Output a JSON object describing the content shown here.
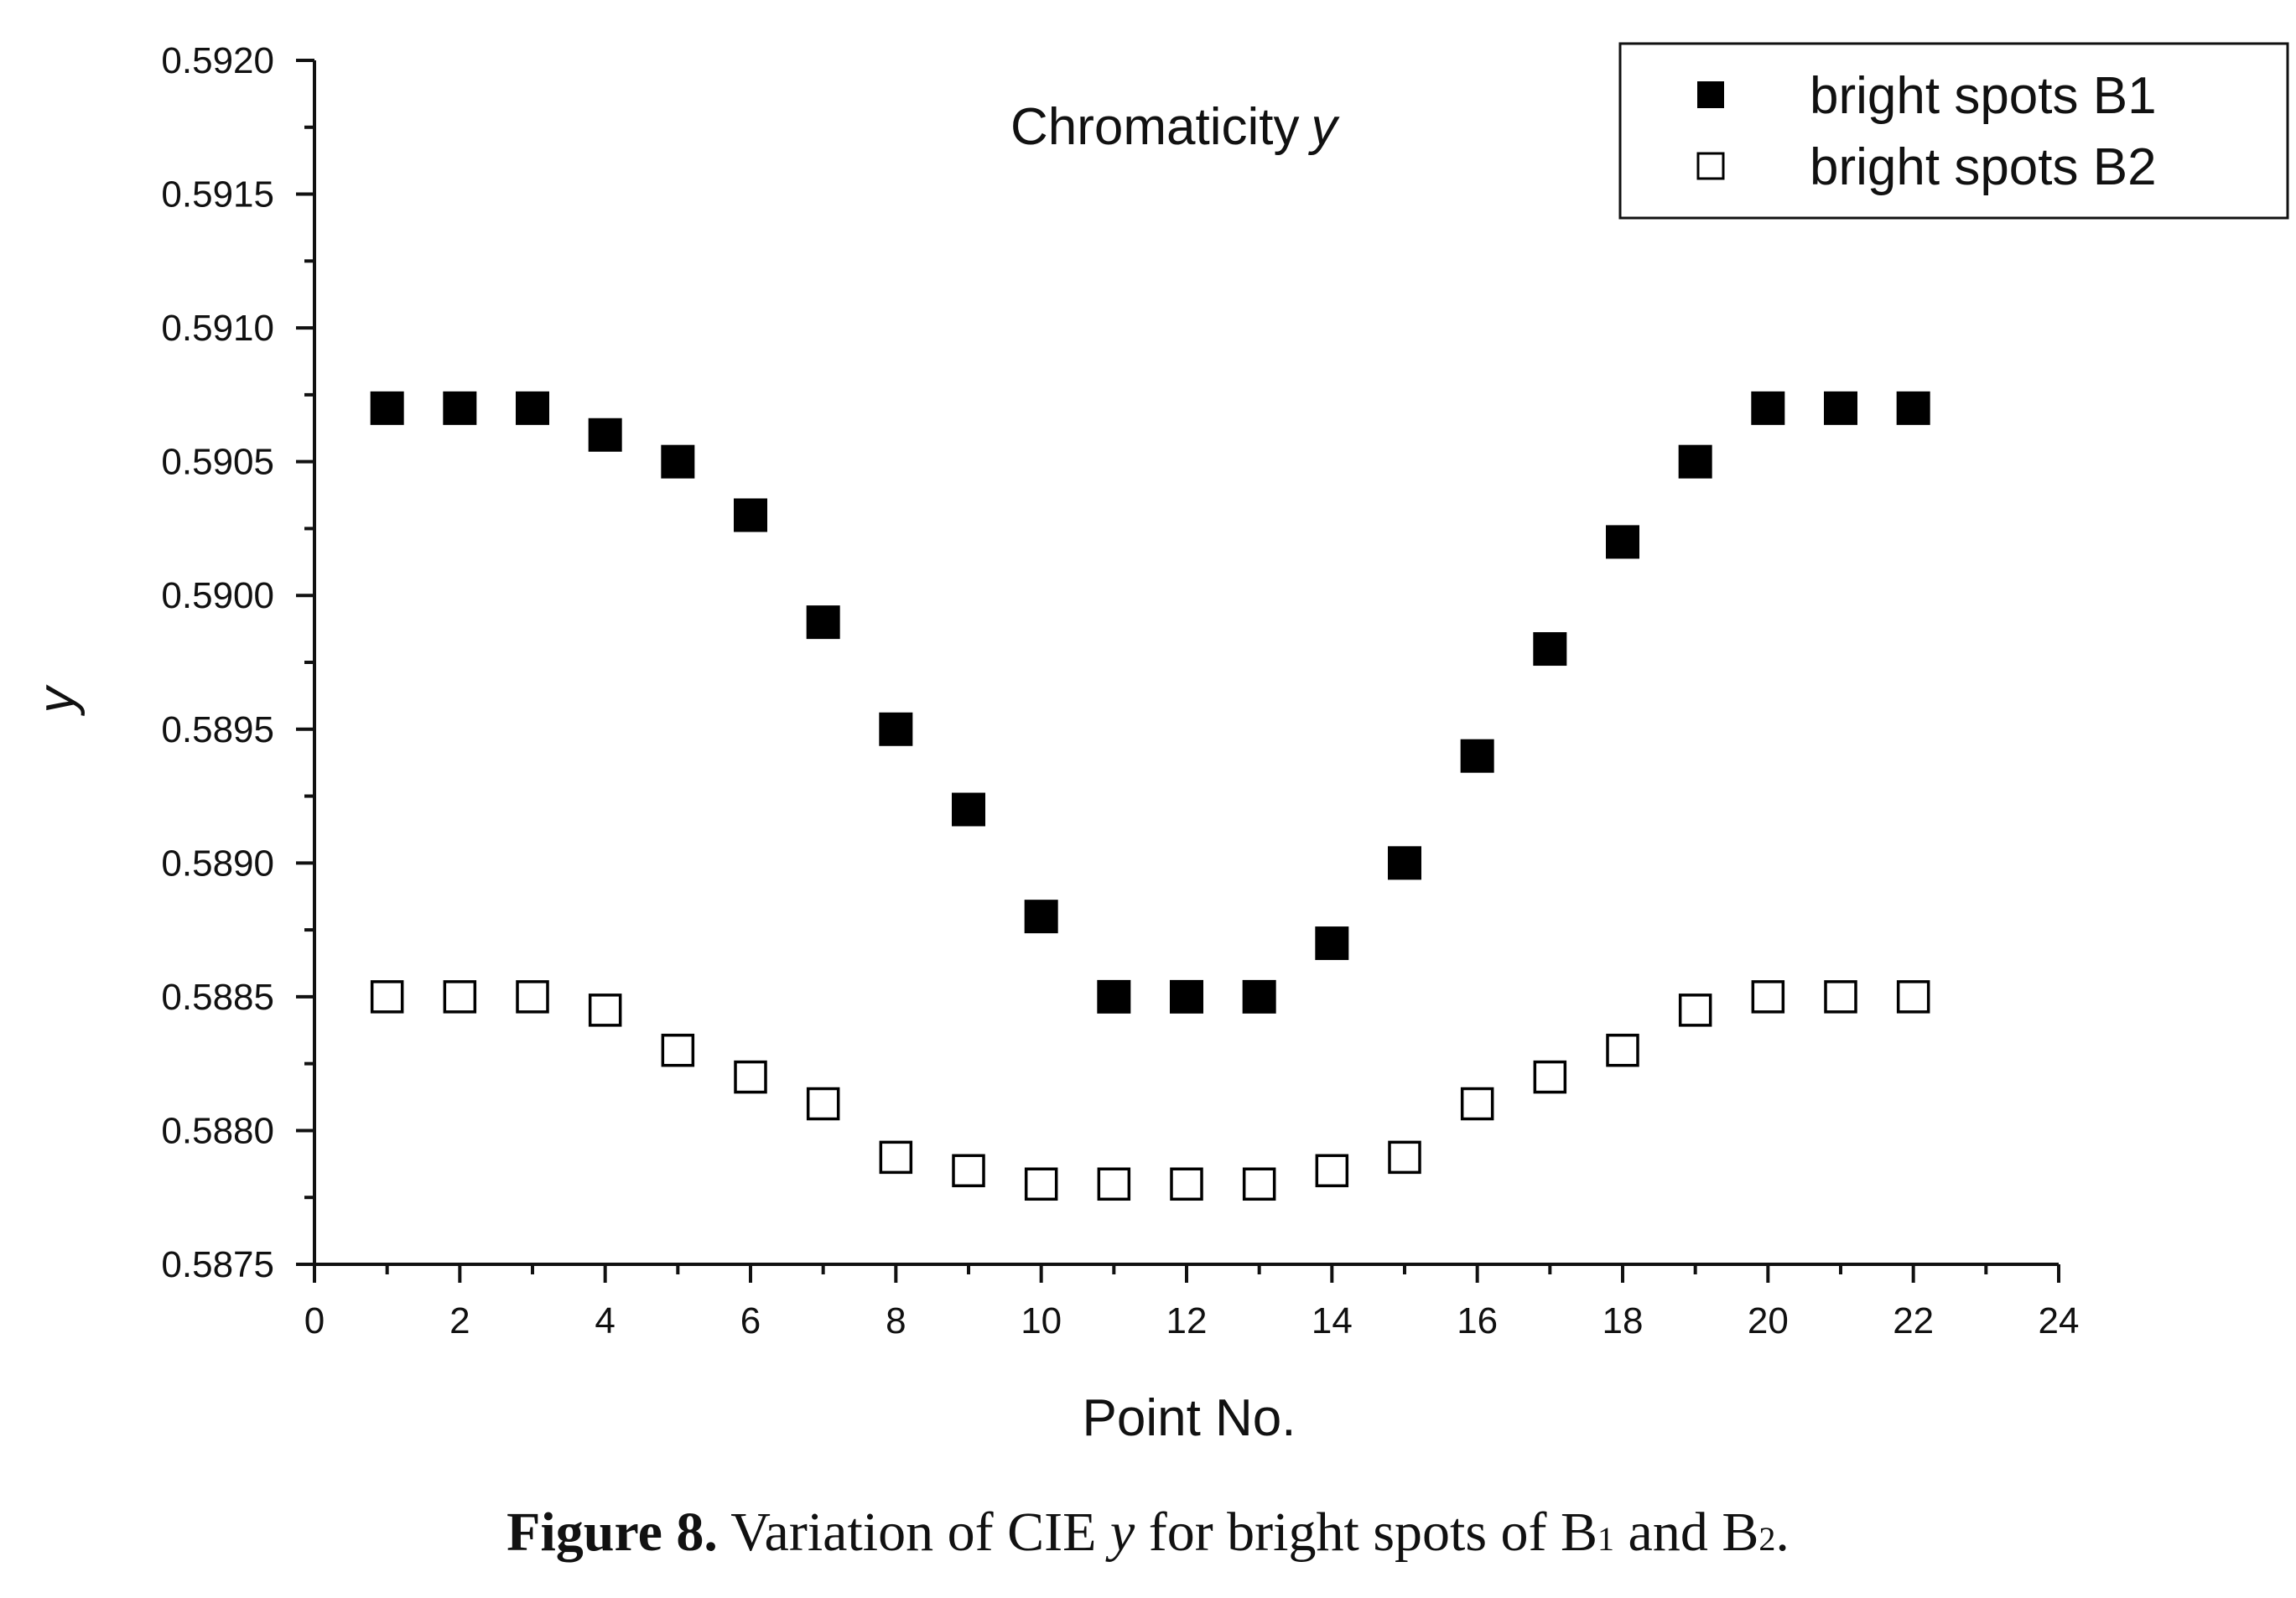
{
  "chart_data": {
    "type": "scatter",
    "title": "Chromaticity",
    "title_var": "y",
    "xlabel": "Point No.",
    "ylabel": "y",
    "xlim": [
      0,
      24
    ],
    "ylim": [
      0.5875,
      0.592
    ],
    "x_ticks": [
      "0",
      "2",
      "4",
      "6",
      "8",
      "10",
      "12",
      "14",
      "16",
      "18",
      "20",
      "22",
      "24"
    ],
    "y_ticks": [
      "0.5875",
      "0.5880",
      "0.5885",
      "0.5890",
      "0.5895",
      "0.5900",
      "0.5905",
      "0.5910",
      "0.5915",
      "0.5920"
    ],
    "legend_position": "top-right",
    "series": [
      {
        "name": "bright spots B1",
        "marker": "filled-square",
        "color": "#000000",
        "x": [
          1,
          2,
          3,
          4,
          5,
          6,
          7,
          8,
          9,
          10,
          11,
          12,
          13,
          14,
          15,
          16,
          17,
          18,
          19,
          20,
          21,
          22
        ],
        "y": [
          0.5907,
          0.5907,
          0.5907,
          0.5906,
          0.5905,
          0.5903,
          0.5899,
          0.5895,
          0.5892,
          0.5888,
          0.5885,
          0.5885,
          0.5885,
          0.5887,
          0.589,
          0.5894,
          0.5898,
          0.5902,
          0.5905,
          0.5907,
          0.5907,
          0.5907
        ]
      },
      {
        "name": "bright spots B2",
        "marker": "open-square",
        "color": "#000000",
        "x": [
          1,
          2,
          3,
          4,
          5,
          6,
          7,
          8,
          9,
          10,
          11,
          12,
          13,
          14,
          15,
          16,
          17,
          18,
          19,
          20,
          21,
          22
        ],
        "y": [
          0.5885,
          0.5885,
          0.5885,
          0.58845,
          0.5883,
          0.5882,
          0.5881,
          0.5879,
          0.58785,
          0.5878,
          0.5878,
          0.5878,
          0.5878,
          0.58785,
          0.5879,
          0.5881,
          0.5882,
          0.5883,
          0.58845,
          0.5885,
          0.5885,
          0.5885
        ]
      }
    ]
  },
  "caption": {
    "label": "Figure 8.",
    "text_before": " Variation of CIE ",
    "var": "y",
    "text_mid": " for bright spots of B",
    "sub1": "1",
    "text_and": " and B",
    "sub2": "2",
    "text_end": "."
  }
}
